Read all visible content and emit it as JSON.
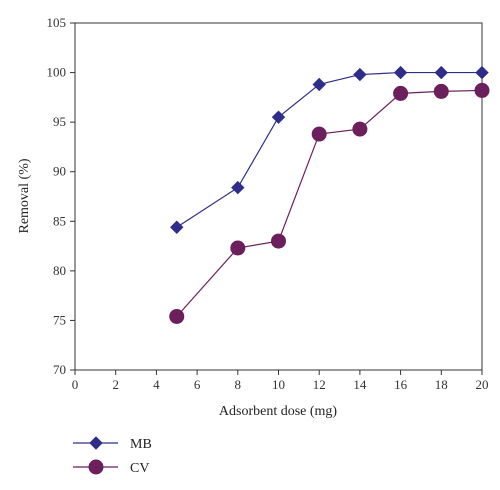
{
  "chart_data": {
    "type": "line",
    "xlabel": "Adsorbent dose (mg)",
    "ylabel": "Removal (%)",
    "xlim": [
      0,
      20
    ],
    "ylim": [
      70,
      105
    ],
    "xticks": [
      0,
      2,
      4,
      6,
      8,
      10,
      12,
      14,
      16,
      18,
      20
    ],
    "yticks": [
      70,
      75,
      80,
      85,
      90,
      95,
      100,
      105
    ],
    "grid": false,
    "legend_position": "bottom-left",
    "series": [
      {
        "name": "MB",
        "marker": "diamond",
        "color": "#2e2e8a",
        "x": [
          5,
          8,
          10,
          12,
          14,
          16,
          18,
          20
        ],
        "y": [
          84.4,
          88.4,
          95.5,
          98.8,
          99.8,
          100.0,
          100.0,
          100.0
        ]
      },
      {
        "name": "CV",
        "marker": "circle",
        "color": "#6b1f5c",
        "x": [
          5,
          8,
          10,
          12,
          14,
          16,
          18,
          20
        ],
        "y": [
          75.4,
          82.3,
          83.0,
          93.8,
          94.3,
          97.9,
          98.1,
          98.2
        ]
      }
    ]
  }
}
